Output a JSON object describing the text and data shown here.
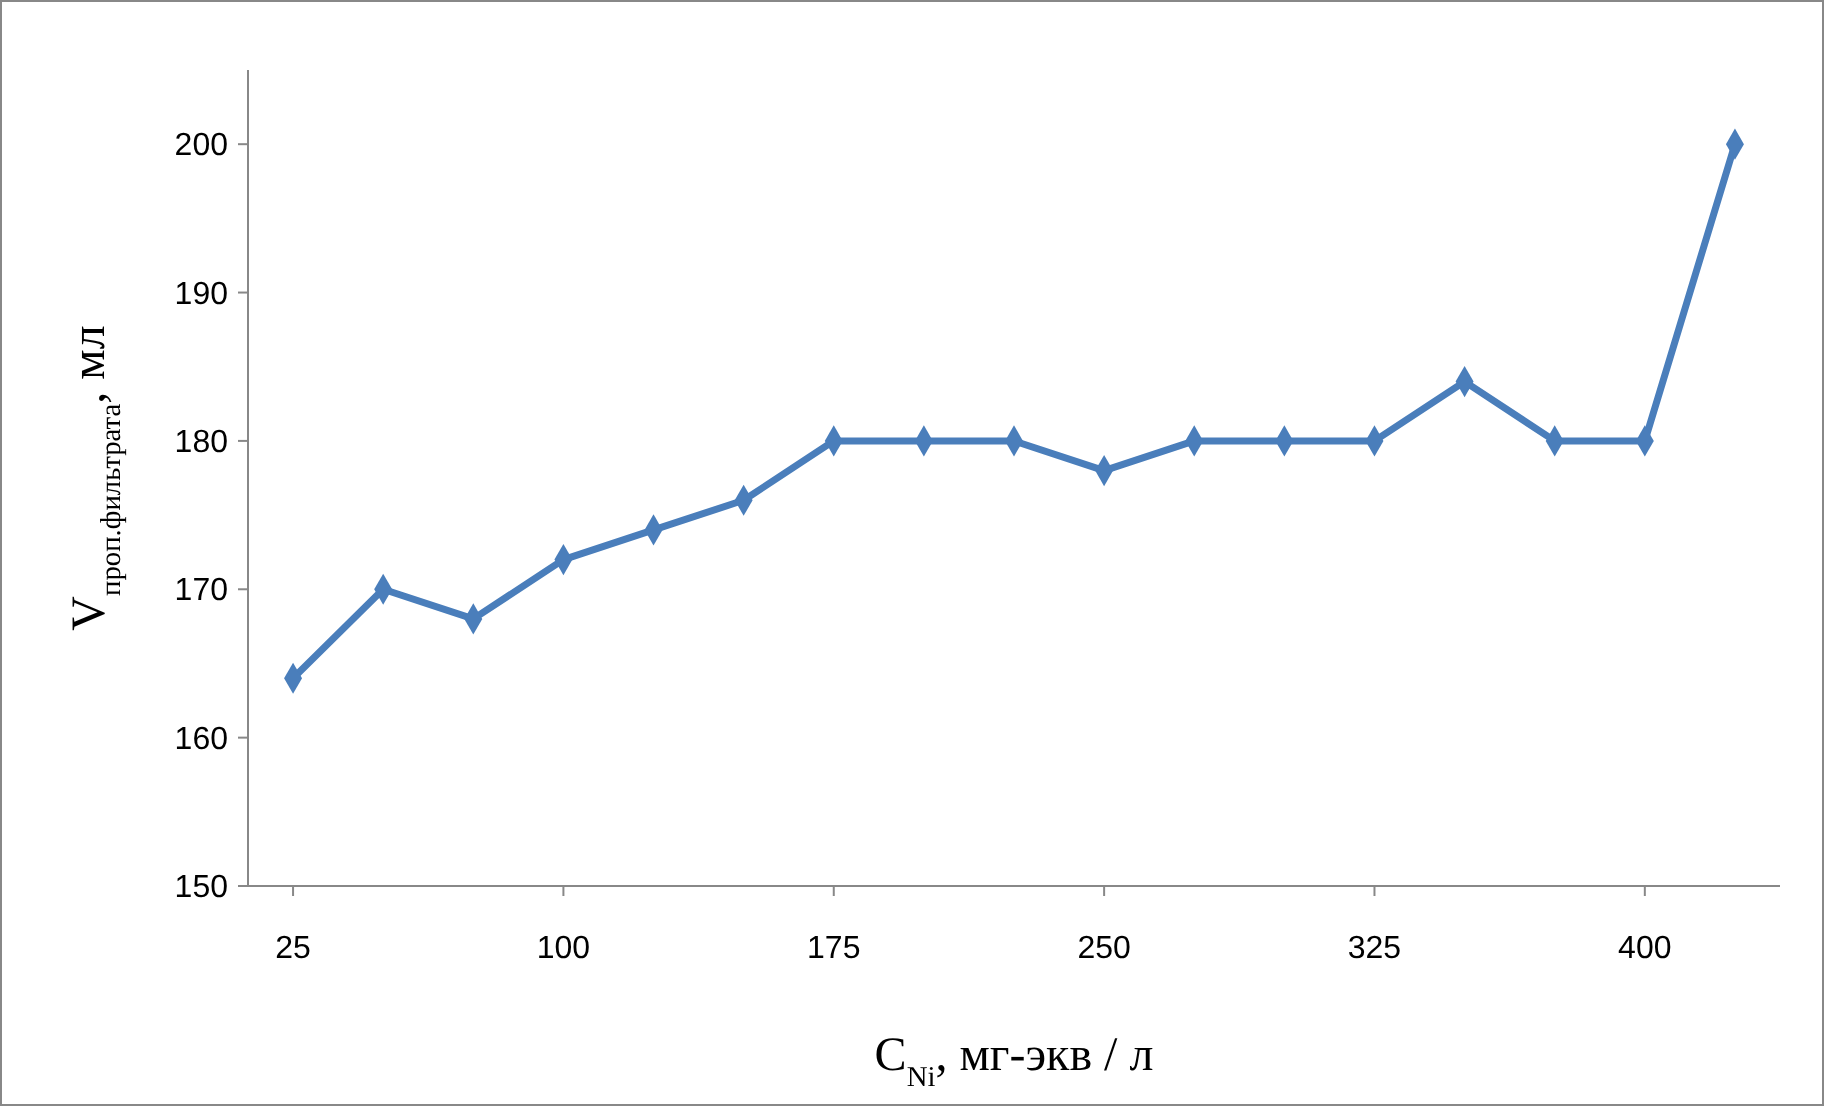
{
  "chart_data": {
    "type": "line",
    "xlabel": "C$_{Ni}$, мг-экв / л",
    "ylabel": "V$_{проп.фильтрата}$,  мл",
    "x": [
      25,
      50,
      75,
      100,
      125,
      150,
      175,
      200,
      225,
      250,
      275,
      300,
      325,
      350,
      375,
      400,
      425
    ],
    "series": [
      {
        "color": "#4a7ebb",
        "values": [
          164,
          170,
          168,
          172,
          174,
          176,
          180,
          180,
          180,
          178,
          180,
          180,
          180,
          184,
          180,
          180,
          200
        ]
      }
    ],
    "xlim": [
      12.5,
      437.5
    ],
    "xticks": [
      25,
      100,
      175,
      250,
      325,
      400
    ],
    "ylim": [
      150,
      205
    ],
    "yticks": [
      150,
      160,
      170,
      180,
      190,
      200
    ],
    "marker": "diamond",
    "line_style": "solid"
  }
}
